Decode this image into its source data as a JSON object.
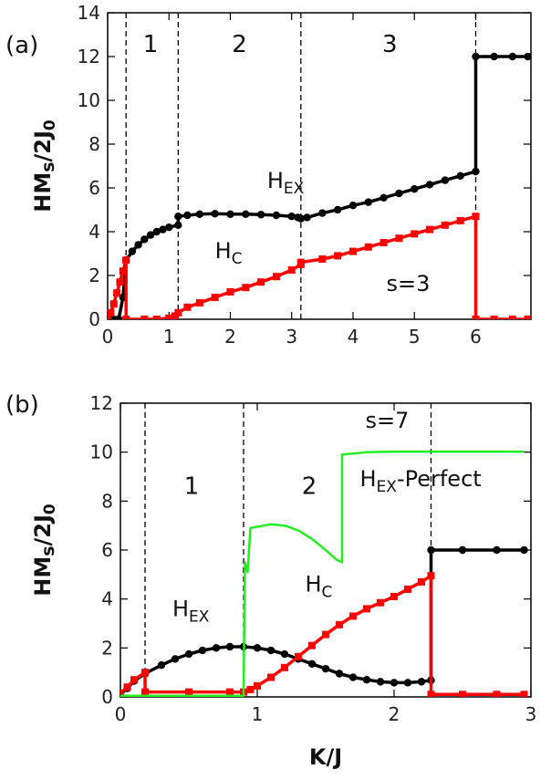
{
  "chart_data": [
    {
      "panel_label": "(a)",
      "type": "line",
      "xlabel": "",
      "ylabel": "HMs/2J0",
      "xlim": [
        0,
        6.9
      ],
      "ylim": [
        0,
        14
      ],
      "xticks": [
        0,
        1,
        2,
        3,
        4,
        5,
        6
      ],
      "yticks": [
        0,
        2,
        4,
        6,
        8,
        10,
        12,
        14
      ],
      "grid": false,
      "vlines": [
        0.3,
        1.15,
        3.15,
        6.0
      ],
      "region_labels": [
        {
          "text": "1",
          "x": 0.7,
          "y": 12.2
        },
        {
          "text": "2",
          "x": 2.15,
          "y": 12.2
        },
        {
          "text": "3",
          "x": 4.6,
          "y": 12.2
        }
      ],
      "annotations": [
        {
          "text": "s=3",
          "x": 4.9,
          "y": 1.3
        }
      ],
      "curve_labels": [
        {
          "main": "H",
          "sub": "EX",
          "x": 2.6,
          "y": 6.0
        },
        {
          "main": "H",
          "sub": "C",
          "x": 1.75,
          "y": 2.8
        }
      ],
      "series": [
        {
          "key": "H_EX",
          "color": "#000000",
          "points": [
            [
              0.1,
              0
            ],
            [
              0.18,
              0
            ],
            [
              0.25,
              1.0
            ],
            [
              0.3,
              2.7
            ],
            [
              0.4,
              3.1
            ],
            [
              0.5,
              3.4
            ],
            [
              0.6,
              3.65
            ],
            [
              0.7,
              3.85
            ],
            [
              0.8,
              4.0
            ],
            [
              0.9,
              4.1
            ],
            [
              1.0,
              4.2
            ],
            [
              1.15,
              4.3
            ],
            [
              1.15,
              4.7
            ],
            [
              1.3,
              4.75
            ],
            [
              1.5,
              4.8
            ],
            [
              1.75,
              4.82
            ],
            [
              2.0,
              4.8
            ],
            [
              2.25,
              4.8
            ],
            [
              2.5,
              4.78
            ],
            [
              2.75,
              4.75
            ],
            [
              3.0,
              4.7
            ],
            [
              3.1,
              4.65
            ],
            [
              3.15,
              4.6
            ],
            [
              3.25,
              4.65
            ],
            [
              3.5,
              4.85
            ],
            [
              3.75,
              5.0
            ],
            [
              4.0,
              5.2
            ],
            [
              4.25,
              5.35
            ],
            [
              4.5,
              5.55
            ],
            [
              4.75,
              5.75
            ],
            [
              5.0,
              5.95
            ],
            [
              5.25,
              6.15
            ],
            [
              5.5,
              6.35
            ],
            [
              5.75,
              6.55
            ],
            [
              6.0,
              6.75
            ],
            [
              6.0,
              12.0
            ],
            [
              6.3,
              12.0
            ],
            [
              6.6,
              12.0
            ],
            [
              6.85,
              12.0
            ]
          ]
        },
        {
          "key": "H_C",
          "color": "#ff0000",
          "points": [
            [
              0.0,
              0
            ],
            [
              0.05,
              0.3
            ],
            [
              0.1,
              0.7
            ],
            [
              0.15,
              1.2
            ],
            [
              0.2,
              1.7
            ],
            [
              0.25,
              2.2
            ],
            [
              0.3,
              2.7
            ],
            [
              0.3,
              0
            ],
            [
              0.6,
              0
            ],
            [
              0.8,
              0
            ],
            [
              1.0,
              0.05
            ],
            [
              1.1,
              0.15
            ],
            [
              1.15,
              0.3
            ],
            [
              1.3,
              0.55
            ],
            [
              1.5,
              0.75
            ],
            [
              1.75,
              1.0
            ],
            [
              2.0,
              1.25
            ],
            [
              2.25,
              1.45
            ],
            [
              2.5,
              1.7
            ],
            [
              2.75,
              1.95
            ],
            [
              3.0,
              2.25
            ],
            [
              3.15,
              2.5
            ],
            [
              3.15,
              2.6
            ],
            [
              3.5,
              2.75
            ],
            [
              3.75,
              2.9
            ],
            [
              4.0,
              3.1
            ],
            [
              4.25,
              3.3
            ],
            [
              4.5,
              3.5
            ],
            [
              4.75,
              3.7
            ],
            [
              5.0,
              3.9
            ],
            [
              5.25,
              4.1
            ],
            [
              5.5,
              4.3
            ],
            [
              5.75,
              4.5
            ],
            [
              6.0,
              4.7
            ],
            [
              6.0,
              0
            ],
            [
              6.3,
              0
            ],
            [
              6.6,
              0
            ],
            [
              6.85,
              0
            ]
          ]
        }
      ]
    },
    {
      "panel_label": "(b)",
      "type": "line",
      "xlabel": "K/J",
      "ylabel": "HMs/2J0",
      "xlim": [
        0,
        3.0
      ],
      "ylim": [
        0,
        12
      ],
      "xticks": [
        0,
        1,
        2,
        3
      ],
      "yticks": [
        0,
        2,
        4,
        6,
        8,
        10,
        12
      ],
      "grid": false,
      "vlines": [
        0.18,
        0.9,
        2.27
      ],
      "region_labels": [
        {
          "text": "1",
          "x": 0.52,
          "y": 8.3
        },
        {
          "text": "2",
          "x": 1.38,
          "y": 8.3
        }
      ],
      "annotations": [
        {
          "text": "s=7",
          "x": 1.95,
          "y": 11.0
        }
      ],
      "curve_labels": [
        {
          "main": "H",
          "sub": "EX",
          "x": 0.38,
          "y": 3.3
        },
        {
          "main": "H",
          "sub": "C",
          "x": 1.35,
          "y": 4.3
        },
        {
          "main": "H",
          "sub": "EX",
          "tail": "-Perfect",
          "x": 1.75,
          "y": 8.6
        }
      ],
      "series": [
        {
          "key": "H_EX",
          "color": "#000000",
          "points": [
            [
              0.0,
              0.1
            ],
            [
              0.05,
              0.35
            ],
            [
              0.1,
              0.65
            ],
            [
              0.18,
              0.95
            ],
            [
              0.3,
              1.3
            ],
            [
              0.4,
              1.55
            ],
            [
              0.5,
              1.75
            ],
            [
              0.6,
              1.9
            ],
            [
              0.7,
              2.0
            ],
            [
              0.8,
              2.05
            ],
            [
              0.9,
              2.05
            ],
            [
              1.0,
              2.0
            ],
            [
              1.1,
              1.9
            ],
            [
              1.2,
              1.75
            ],
            [
              1.3,
              1.55
            ],
            [
              1.4,
              1.35
            ],
            [
              1.5,
              1.15
            ],
            [
              1.6,
              0.95
            ],
            [
              1.7,
              0.8
            ],
            [
              1.8,
              0.7
            ],
            [
              1.9,
              0.62
            ],
            [
              2.0,
              0.58
            ],
            [
              2.1,
              0.58
            ],
            [
              2.2,
              0.62
            ],
            [
              2.27,
              0.68
            ],
            [
              2.27,
              6.0
            ],
            [
              2.5,
              6.0
            ],
            [
              2.75,
              6.0
            ],
            [
              2.95,
              6.0
            ]
          ]
        },
        {
          "key": "H_C",
          "color": "#ff0000",
          "points": [
            [
              0.0,
              0.15
            ],
            [
              0.05,
              0.4
            ],
            [
              0.1,
              0.7
            ],
            [
              0.18,
              1.0
            ],
            [
              0.18,
              0.2
            ],
            [
              0.5,
              0.2
            ],
            [
              0.8,
              0.2
            ],
            [
              0.9,
              0.2
            ],
            [
              0.95,
              0.3
            ],
            [
              1.0,
              0.45
            ],
            [
              1.1,
              0.8
            ],
            [
              1.2,
              1.2
            ],
            [
              1.3,
              1.65
            ],
            [
              1.4,
              2.1
            ],
            [
              1.5,
              2.55
            ],
            [
              1.6,
              2.95
            ],
            [
              1.7,
              3.3
            ],
            [
              1.8,
              3.6
            ],
            [
              1.9,
              3.85
            ],
            [
              2.0,
              4.1
            ],
            [
              2.1,
              4.4
            ],
            [
              2.2,
              4.7
            ],
            [
              2.27,
              4.95
            ],
            [
              2.27,
              0.1
            ],
            [
              2.5,
              0.1
            ],
            [
              2.75,
              0.1
            ],
            [
              2.95,
              0.1
            ]
          ]
        },
        {
          "key": "H_EX-Perfect",
          "color": "#22ee22",
          "points": [
            [
              0.0,
              0.05
            ],
            [
              0.5,
              0.05
            ],
            [
              0.9,
              0.05
            ],
            [
              0.91,
              5.5
            ],
            [
              0.93,
              5.1
            ],
            [
              0.95,
              6.9
            ],
            [
              1.0,
              6.95
            ],
            [
              1.1,
              7.05
            ],
            [
              1.2,
              7.0
            ],
            [
              1.3,
              6.8
            ],
            [
              1.4,
              6.45
            ],
            [
              1.5,
              6.0
            ],
            [
              1.58,
              5.6
            ],
            [
              1.62,
              5.5
            ],
            [
              1.62,
              9.9
            ],
            [
              1.8,
              10.0
            ],
            [
              2.0,
              10.02
            ],
            [
              2.27,
              10.02
            ],
            [
              2.5,
              10.02
            ],
            [
              2.95,
              10.02
            ]
          ]
        }
      ]
    }
  ]
}
